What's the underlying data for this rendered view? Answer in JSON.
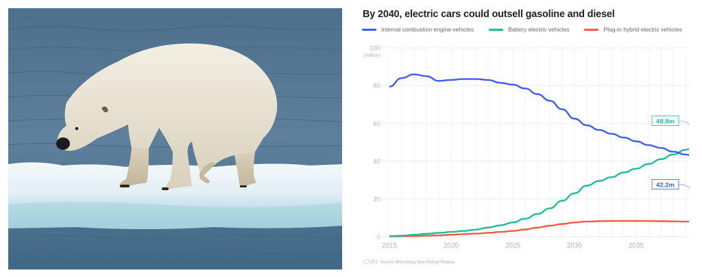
{
  "photo": {
    "subject": "polar-bear-on-ice-floe",
    "alt": "Emaciated polar bear standing on a melting ice floe in open water"
  },
  "chart": {
    "title": "By 2040, electric cars could outsell gasoline and diesel",
    "legend": [
      {
        "label": "Internal combustion engine vehicles",
        "color": "#3b5de7"
      },
      {
        "label": "Battery electric vehicles",
        "color": "#1abc9c"
      },
      {
        "label": "Plug-in hybrid electric vehicles",
        "color": "#f25a45"
      }
    ],
    "y_unit": "(million)",
    "y_ticks": [
      "0",
      "20",
      "40",
      "60",
      "80",
      "100"
    ],
    "x_ticks": [
      "2015",
      "2020",
      "2025",
      "2030",
      "2035"
    ],
    "end_labels": {
      "bev": "48.8m",
      "ice": "42.2m"
    },
    "source": "Source: Bloomberg New Energy Finance",
    "logo": "CNN"
  },
  "chart_data": {
    "type": "line",
    "title": "By 2040, electric cars could outsell gasoline and diesel",
    "xlabel": "",
    "ylabel": "(million)",
    "ylim": [
      0,
      100
    ],
    "xlim": [
      2015,
      2040
    ],
    "grid": true,
    "legend_position": "top",
    "x": [
      2015,
      2016,
      2017,
      2018,
      2019,
      2020,
      2021,
      2022,
      2023,
      2024,
      2025,
      2026,
      2027,
      2028,
      2029,
      2030,
      2031,
      2032,
      2033,
      2034,
      2035,
      2036,
      2037,
      2038,
      2039,
      2040
    ],
    "series": [
      {
        "name": "Internal combustion engine vehicles",
        "color": "#3b5de7",
        "values": [
          79.5,
          84,
          86,
          85,
          82.5,
          83,
          83.5,
          83.5,
          83,
          81.5,
          80.5,
          78.5,
          75.5,
          72,
          67.5,
          62.5,
          59,
          56.5,
          54.5,
          52.5,
          50.5,
          48.5,
          47,
          45,
          43.5,
          42.2
        ]
      },
      {
        "name": "Battery electric vehicles",
        "color": "#1abc9c",
        "values": [
          0.3,
          0.5,
          1,
          1.5,
          2,
          2.5,
          3,
          3.7,
          4.8,
          6,
          7.5,
          9.5,
          12,
          15,
          19,
          23,
          27,
          29.5,
          31.5,
          34,
          36,
          38.5,
          41,
          43.5,
          46,
          48.8
        ]
      },
      {
        "name": "Plug-in hybrid electric vehicles",
        "color": "#f25a45",
        "values": [
          0.1,
          0.2,
          0.3,
          0.5,
          0.7,
          1,
          1.3,
          1.6,
          2,
          2.5,
          3,
          3.8,
          4.8,
          5.8,
          6.7,
          7.5,
          8,
          8.2,
          8.3,
          8.3,
          8.3,
          8.3,
          8.2,
          8.1,
          8,
          8
        ]
      }
    ],
    "annotations": [
      {
        "text": "48.8m",
        "series": "Battery electric vehicles",
        "x": 2040
      },
      {
        "text": "42.2m",
        "series": "Internal combustion engine vehicles",
        "x": 2040
      }
    ],
    "source": "Source: Bloomberg New Energy Finance"
  }
}
